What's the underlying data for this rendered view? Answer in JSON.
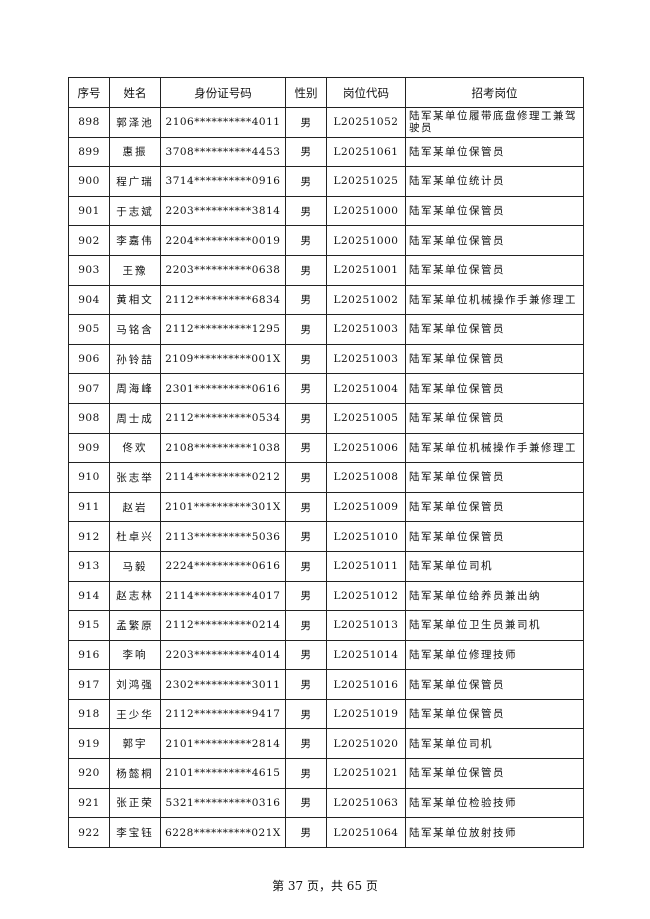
{
  "table": {
    "headers": [
      "序号",
      "姓名",
      "身份证号码",
      "性别",
      "岗位代码",
      "招考岗位"
    ],
    "rows": [
      [
        "898",
        "郭泽池",
        "2106**********4011",
        "男",
        "L20251052",
        "陆军某单位履带底盘修理工兼驾驶员"
      ],
      [
        "899",
        "惠振",
        "3708**********4453",
        "男",
        "L20251061",
        "陆军某单位保管员"
      ],
      [
        "900",
        "程广瑞",
        "3714**********0916",
        "男",
        "L20251025",
        "陆军某单位统计员"
      ],
      [
        "901",
        "于志斌",
        "2203**********3814",
        "男",
        "L20251000",
        "陆军某单位保管员"
      ],
      [
        "902",
        "李嘉伟",
        "2204**********0019",
        "男",
        "L20251000",
        "陆军某单位保管员"
      ],
      [
        "903",
        "王豫",
        "2203**********0638",
        "男",
        "L20251001",
        "陆军某单位保管员"
      ],
      [
        "904",
        "黄相文",
        "2112**********6834",
        "男",
        "L20251002",
        "陆军某单位机械操作手兼修理工"
      ],
      [
        "905",
        "马铭含",
        "2112**********1295",
        "男",
        "L20251003",
        "陆军某单位保管员"
      ],
      [
        "906",
        "孙铃喆",
        "2109**********001X",
        "男",
        "L20251003",
        "陆军某单位保管员"
      ],
      [
        "907",
        "周海峰",
        "2301**********0616",
        "男",
        "L20251004",
        "陆军某单位保管员"
      ],
      [
        "908",
        "周士成",
        "2112**********0534",
        "男",
        "L20251005",
        "陆军某单位保管员"
      ],
      [
        "909",
        "佟欢",
        "2108**********1038",
        "男",
        "L20251006",
        "陆军某单位机械操作手兼修理工"
      ],
      [
        "910",
        "张志举",
        "2114**********0212",
        "男",
        "L20251008",
        "陆军某单位保管员"
      ],
      [
        "911",
        "赵岩",
        "2101**********301X",
        "男",
        "L20251009",
        "陆军某单位保管员"
      ],
      [
        "912",
        "杜卓兴",
        "2113**********5036",
        "男",
        "L20251010",
        "陆军某单位保管员"
      ],
      [
        "913",
        "马毅",
        "2224**********0616",
        "男",
        "L20251011",
        "陆军某单位司机"
      ],
      [
        "914",
        "赵志林",
        "2114**********4017",
        "男",
        "L20251012",
        "陆军某单位给养员兼出纳"
      ],
      [
        "915",
        "孟繁原",
        "2112**********0214",
        "男",
        "L20251013",
        "陆军某单位卫生员兼司机"
      ],
      [
        "916",
        "李响",
        "2203**********4014",
        "男",
        "L20251014",
        "陆军某单位修理技师"
      ],
      [
        "917",
        "刘鸿强",
        "2302**********3011",
        "男",
        "L20251016",
        "陆军某单位保管员"
      ],
      [
        "918",
        "王少华",
        "2112**********9417",
        "男",
        "L20251019",
        "陆军某单位保管员"
      ],
      [
        "919",
        "郭宇",
        "2101**********2814",
        "男",
        "L20251020",
        "陆军某单位司机"
      ],
      [
        "920",
        "杨懿桐",
        "2101**********4615",
        "男",
        "L20251021",
        "陆军某单位保管员"
      ],
      [
        "921",
        "张正荣",
        "5321**********0316",
        "男",
        "L20251063",
        "陆军某单位检验技师"
      ],
      [
        "922",
        "李宝钰",
        "6228**********021X",
        "男",
        "L20251064",
        "陆军某单位放射技师"
      ]
    ]
  },
  "footer": {
    "page_text": "第 37 页，共 65 页"
  }
}
